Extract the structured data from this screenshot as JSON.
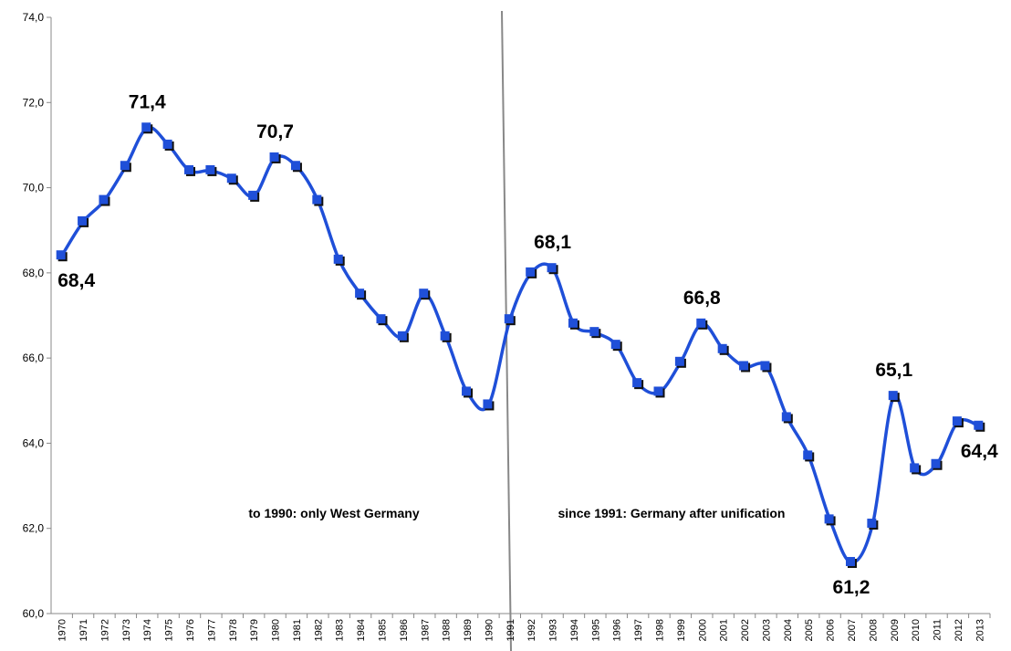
{
  "chart_data": {
    "type": "line",
    "categories": [
      "1970",
      "1971",
      "1972",
      "1973",
      "1974",
      "1975",
      "1976",
      "1977",
      "1978",
      "1979",
      "1980",
      "1981",
      "1982",
      "1983",
      "1984",
      "1985",
      "1986",
      "1987",
      "1988",
      "1989",
      "1990",
      "1991",
      "1992",
      "1993",
      "1994",
      "1995",
      "1996",
      "1997",
      "1998",
      "1999",
      "2000",
      "2001",
      "2002",
      "2003",
      "2004",
      "2005",
      "2006",
      "2007",
      "2008",
      "2009",
      "2010",
      "2011",
      "2012",
      "2013"
    ],
    "values": [
      68.4,
      69.2,
      69.7,
      70.5,
      71.4,
      71.0,
      70.4,
      70.4,
      70.2,
      69.8,
      70.7,
      70.5,
      69.7,
      68.3,
      67.5,
      66.9,
      66.5,
      67.5,
      66.5,
      65.2,
      64.9,
      66.9,
      68.0,
      68.1,
      66.8,
      66.6,
      66.3,
      65.4,
      65.2,
      65.9,
      66.8,
      66.2,
      65.8,
      65.8,
      64.6,
      63.7,
      62.2,
      61.2,
      62.1,
      65.1,
      63.4,
      63.5,
      64.5,
      64.4
    ],
    "value_labels": [
      "68,4",
      null,
      null,
      null,
      "71,4",
      null,
      null,
      null,
      null,
      null,
      "70,7",
      null,
      null,
      null,
      null,
      null,
      null,
      null,
      null,
      null,
      null,
      null,
      null,
      "68,1",
      null,
      null,
      null,
      null,
      null,
      null,
      "66,8",
      null,
      null,
      null,
      null,
      null,
      null,
      "61,2",
      null,
      "65,1",
      null,
      null,
      null,
      "64,4"
    ],
    "color": "#1f4fd8",
    "ylim": [
      60,
      74
    ],
    "yticks": [
      {
        "value": 60,
        "label": "60,0"
      },
      {
        "value": 62,
        "label": "62,0"
      },
      {
        "value": 64,
        "label": "64,0"
      },
      {
        "value": 66,
        "label": "66,0"
      },
      {
        "value": 68,
        "label": "68,0"
      },
      {
        "value": 70,
        "label": "70,0"
      },
      {
        "value": 72,
        "label": "72,0"
      },
      {
        "value": 74,
        "label": "74,0"
      }
    ],
    "annotations": [
      "to 1990: only West Germany",
      "since 1991: Germany after unification"
    ]
  }
}
